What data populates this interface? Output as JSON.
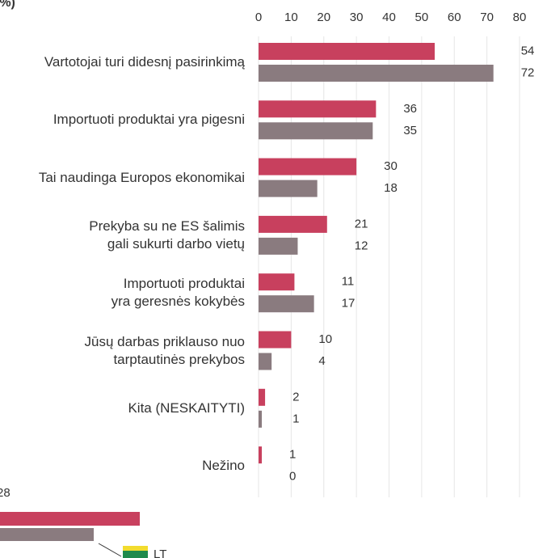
{
  "chart_data": {
    "type": "bar",
    "orientation": "horizontal",
    "title": "(%)",
    "categories": [
      "Vartotojai turi didesnį pasirinkimą",
      "Importuoti produktai yra pigesni",
      "Tai naudinga Europos ekonomikai",
      "Prekyba su ne ES šalimis\ngali sukurti darbo vietų",
      "Importuoti produktai\nyra geresnės kokybės",
      "Jūsų darbas priklauso nuo\ntarptautinės prekybos",
      "Kita (NESKAITYTI)",
      "Nežino"
    ],
    "series": [
      {
        "color": "#c8405e",
        "values": [
          54,
          36,
          30,
          21,
          11,
          10,
          2,
          1
        ]
      },
      {
        "color": "#8a7b7f",
        "values": [
          72,
          35,
          18,
          12,
          17,
          4,
          1,
          0
        ]
      }
    ],
    "xlim": [
      0,
      80
    ],
    "xticks": [
      0,
      10,
      20,
      30,
      40,
      50,
      60,
      70,
      80
    ],
    "grid": true,
    "inset": {
      "label": "28",
      "flag": "LT"
    }
  }
}
